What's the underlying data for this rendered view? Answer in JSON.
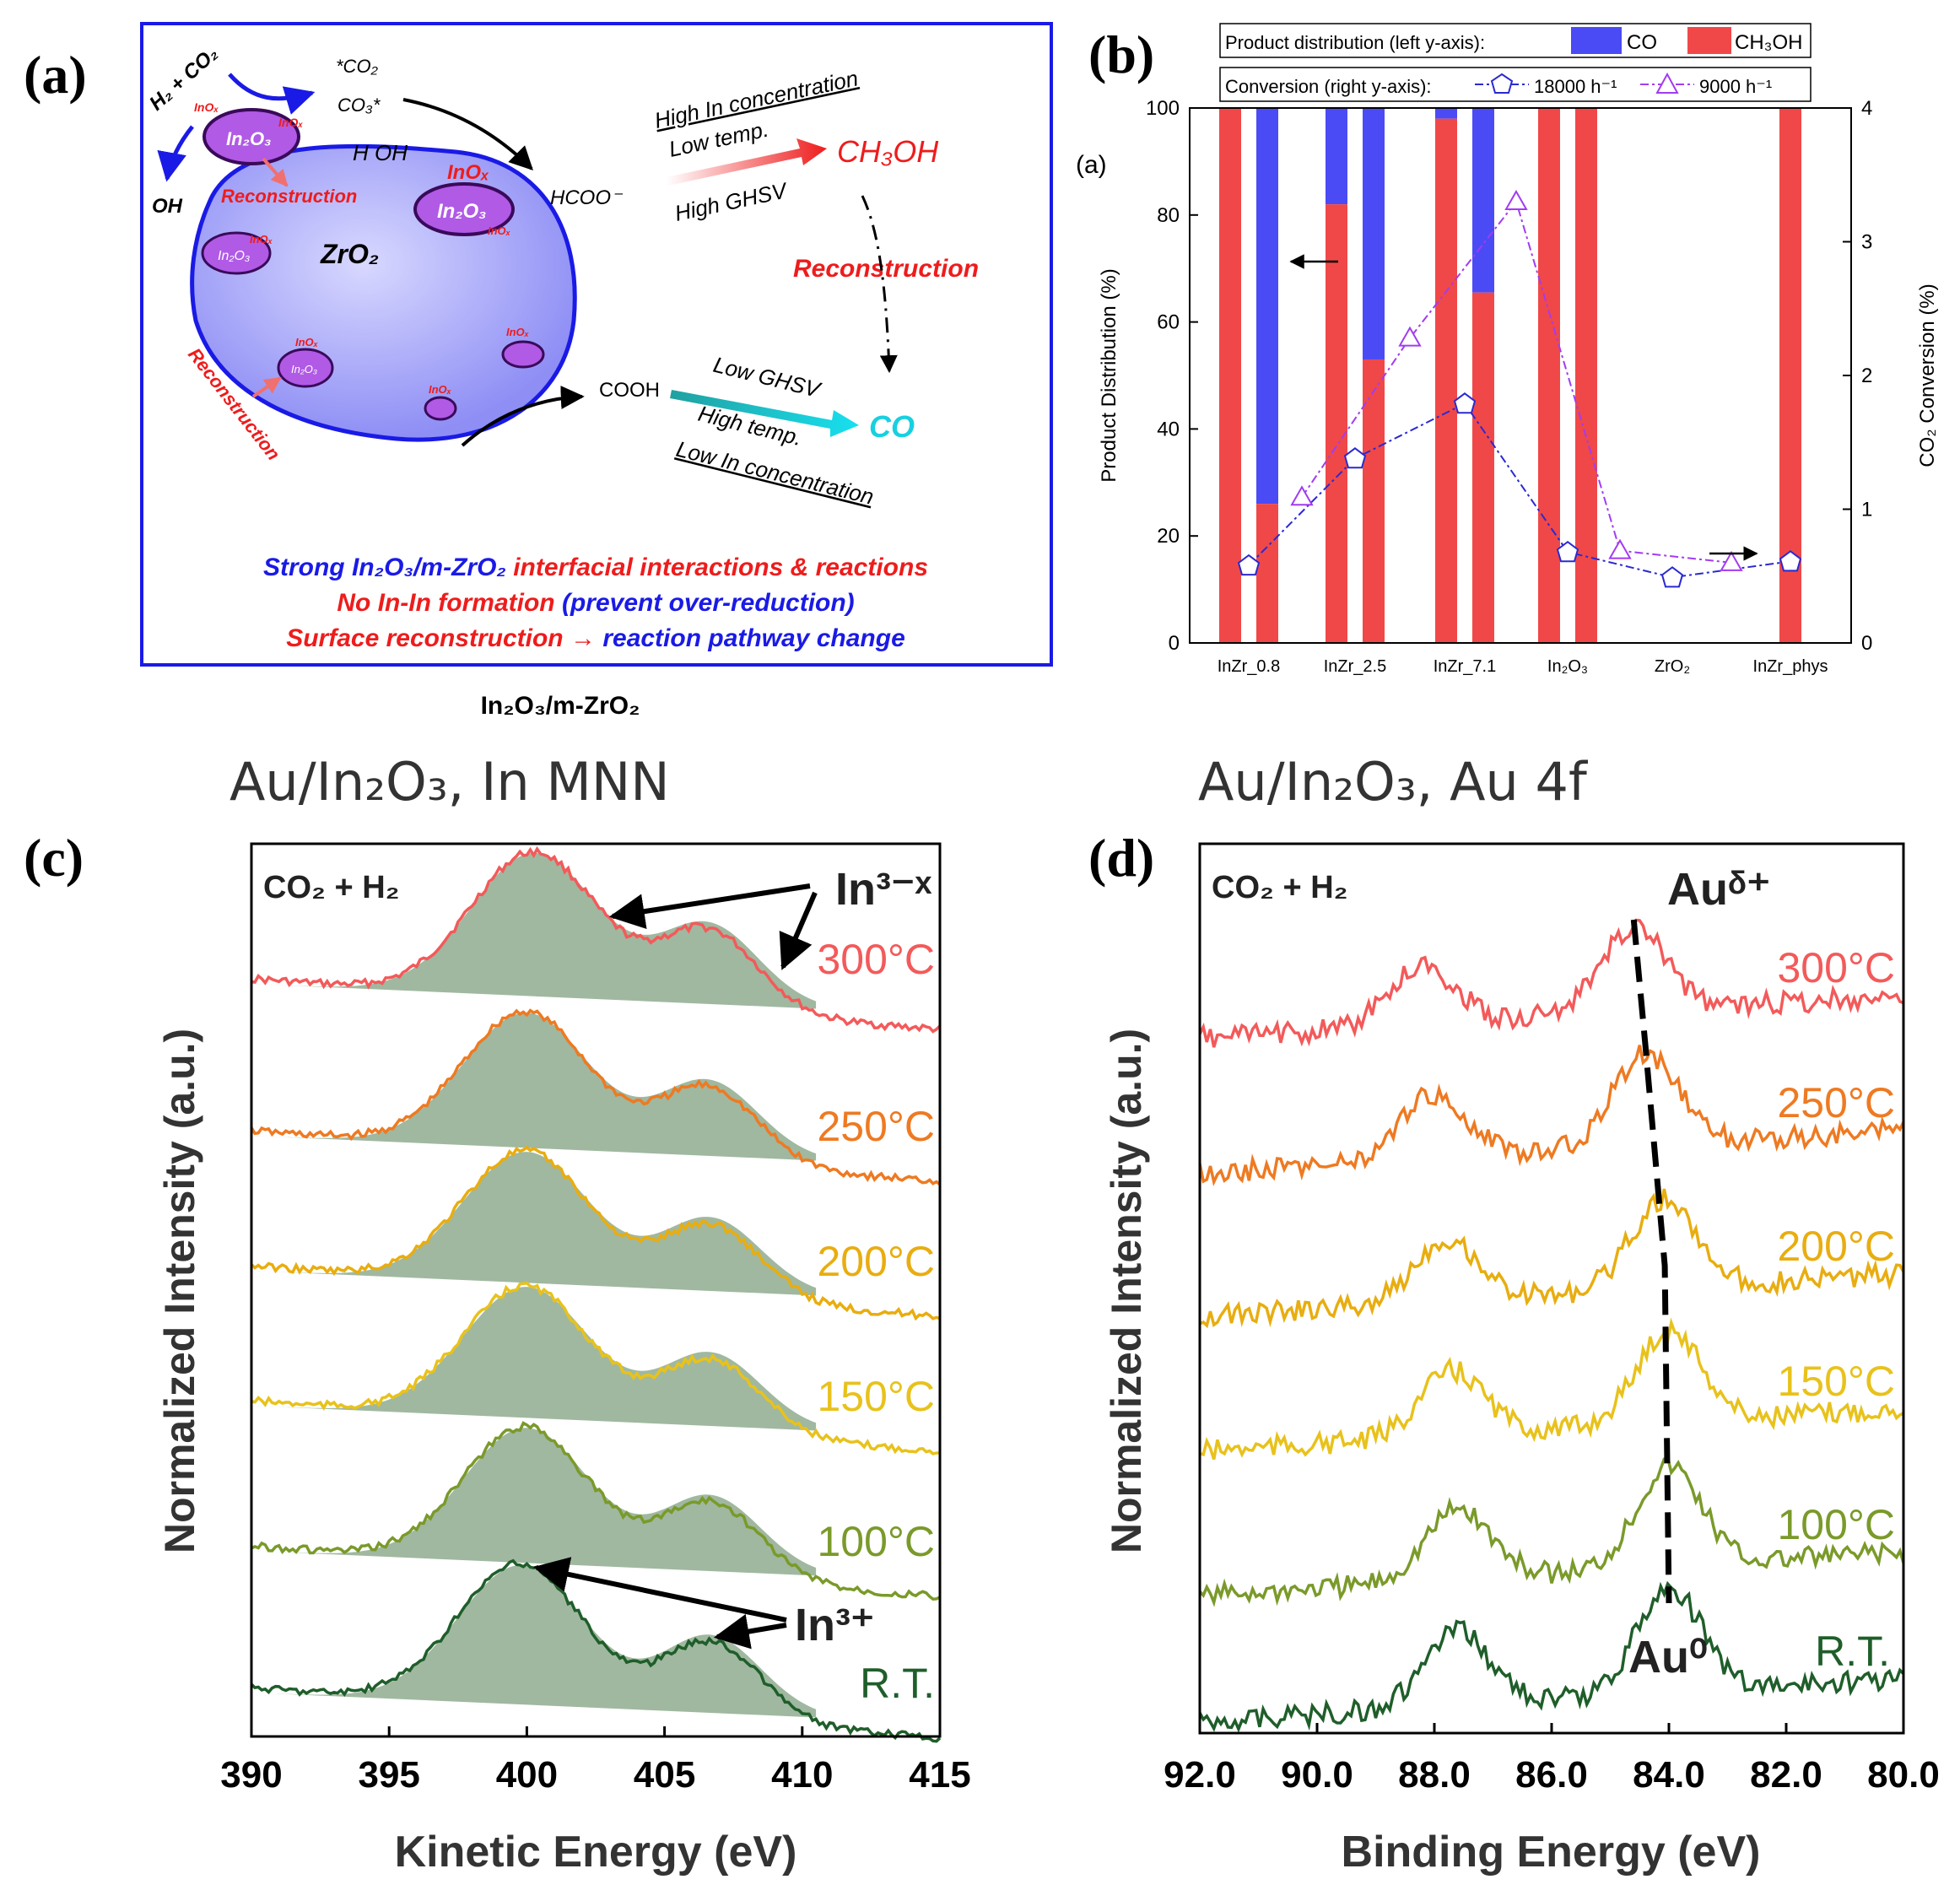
{
  "panels": {
    "a": "(a)",
    "b": "(b)",
    "c": "(c)",
    "d": "(d)"
  },
  "colors": {
    "co": "#4b4bf5",
    "ch3oh": "#f04848",
    "blue": "#1a1ae6",
    "red": "#ee1c1c",
    "cyan": "#18d0e0",
    "purple": "#a23cf0",
    "t300": "#f35a5a",
    "t250": "#ee7a22",
    "t200": "#e8ad10",
    "t150": "#e8c21c",
    "t100": "#7a9a2a",
    "trt": "#1f5e2a",
    "fill": "#80a080"
  },
  "panel_a": {
    "reactant": "H₂ + CO₂",
    "co2_ads": "*CO₂",
    "co3_ads": "CO₃*",
    "h_oh": "H  OH",
    "oh": "OH",
    "hcoo": "HCOO⁻",
    "cooh": "COOH",
    "support": "ZrO₂",
    "cluster_label": "In₂O₃",
    "inox": "InOₓ",
    "reconstruction": "Reconstruction",
    "high_in": "High In concentration",
    "low_temp": "Low temp.",
    "high_ghsv": "High GHSV",
    "product_meoh": "CH₃OH",
    "reconstruction_mid": "Reconstruction",
    "low_ghsv": "Low GHSV",
    "high_temp": "High temp.",
    "low_in": "Low In concentration",
    "product_co": "CO",
    "summary_1a": "Strong In₂O₃/m-ZrO₂",
    "summary_1b": "interfacial interactions & reactions",
    "summary_2a": "No In-In formation",
    "summary_2b": "(prevent over-reduction)",
    "summary_3a": "Surface reconstruction →",
    "summary_3b": "reaction pathway change",
    "caption": "In₂O₃/m-ZrO₂"
  },
  "chart_data": [
    {
      "type": "bar",
      "panel": "b",
      "inner_label": "(a)",
      "legend_row1_label": "Product distribution (left y-axis):",
      "legend_row2_label": "Conversion (right y-axis):",
      "categories": [
        "InZr_0.8",
        "InZr_2.5",
        "InZr_7.1",
        "In₂O₃",
        "ZrO₂",
        "InZr_phys"
      ],
      "bar_groups": [
        {
          "category": "InZr_0.8",
          "bars": [
            {
              "ch3oh": 100
            },
            {
              "ch3oh": 26
            }
          ]
        },
        {
          "category": "InZr_2.5",
          "bars": [
            {
              "ch3oh": 82
            },
            {
              "ch3oh": 53
            }
          ]
        },
        {
          "category": "InZr_7.1",
          "bars": [
            {
              "ch3oh": 98
            },
            {
              "ch3oh": 65.5
            }
          ]
        },
        {
          "category": "In₂O₃",
          "bars": [
            {
              "ch3oh": 100
            },
            {
              "ch3oh": 100
            }
          ]
        },
        {
          "category": "ZrO₂",
          "bars": []
        },
        {
          "category": "InZr_phys",
          "bars": [
            {
              "ch3oh": 100
            }
          ]
        }
      ],
      "series": [
        {
          "name": "CO",
          "kind": "stacked-bar"
        },
        {
          "name": "CH₃OH",
          "kind": "stacked-bar"
        },
        {
          "name": "18000 h⁻¹",
          "kind": "line",
          "axis": "right",
          "points": [
            [
              0,
              0.58
            ],
            [
              1,
              1.38
            ],
            [
              2,
              1.79
            ],
            [
              3,
              0.68
            ],
            [
              4,
              0.49
            ],
            [
              5,
              0.61
            ]
          ]
        },
        {
          "name": "9000 h⁻¹",
          "kind": "line",
          "axis": "right",
          "points": [
            [
              0.5,
              1.09
            ],
            [
              1.5,
              2.28
            ],
            [
              2.5,
              3.3
            ],
            [
              3.5,
              0.69
            ],
            [
              4.5,
              0.6
            ]
          ]
        }
      ],
      "ylabel": "Product Distribution (%)",
      "ylabel2": "CO₂ Conversion (%)",
      "ylim": [
        0,
        100
      ],
      "ylim2": [
        0,
        4
      ],
      "yticks": [
        0,
        20,
        40,
        60,
        80,
        100
      ],
      "yticks2": [
        0,
        1,
        2,
        3,
        4
      ]
    },
    {
      "type": "line",
      "panel": "c",
      "title": "Au/In₂O₃, In MNN",
      "condition": "CO₂ + H₂",
      "xlabel": "Kinetic Energy (eV)",
      "ylabel": "Normalized Intensity (a.u.)",
      "xlim": [
        390,
        415
      ],
      "xticks": [
        390,
        395,
        400,
        405,
        410,
        415
      ],
      "series": [
        {
          "name": "300°C",
          "peaks": [
            [
              400.3,
              1.0
            ],
            [
              406.6,
              0.55
            ]
          ]
        },
        {
          "name": "250°C",
          "peaks": [
            [
              400.0,
              1.0
            ],
            [
              406.6,
              0.55
            ]
          ]
        },
        {
          "name": "200°C",
          "peaks": [
            [
              400.0,
              1.0
            ],
            [
              406.7,
              0.55
            ]
          ]
        },
        {
          "name": "150°C",
          "peaks": [
            [
              400.0,
              1.0
            ],
            [
              406.7,
              0.55
            ]
          ]
        },
        {
          "name": "100°C",
          "peaks": [
            [
              400.0,
              1.0
            ],
            [
              406.7,
              0.55
            ]
          ]
        },
        {
          "name": "R.T.",
          "peaks": [
            [
              399.8,
              1.0
            ],
            [
              406.7,
              0.55
            ]
          ]
        }
      ],
      "annotations": [
        "In³⁻ˣ",
        "In³⁺"
      ]
    },
    {
      "type": "line",
      "panel": "d",
      "title": "Au/In₂O₃, Au 4f",
      "condition": "CO₂ + H₂",
      "xlabel": "Binding Energy (eV)",
      "ylabel": "Normalized Intensity (a.u.)",
      "xlim": [
        92.0,
        80.0
      ],
      "xticks": [
        "92.0",
        "90.0",
        "88.0",
        "86.0",
        "84.0",
        "82.0",
        "80.0"
      ],
      "series": [
        {
          "name": "300°C",
          "peaks": [
            [
              88.2,
              0.7
            ],
            [
              84.6,
              1.0
            ]
          ]
        },
        {
          "name": "250°C",
          "peaks": [
            [
              88.0,
              0.7
            ],
            [
              84.4,
              1.0
            ]
          ]
        },
        {
          "name": "200°C",
          "peaks": [
            [
              87.8,
              0.7
            ],
            [
              84.1,
              1.0
            ]
          ]
        },
        {
          "name": "150°C",
          "peaks": [
            [
              87.7,
              0.7
            ],
            [
              84.0,
              1.0
            ]
          ]
        },
        {
          "name": "100°C",
          "peaks": [
            [
              87.6,
              0.7
            ],
            [
              84.0,
              1.0
            ]
          ]
        },
        {
          "name": "R.T.",
          "peaks": [
            [
              87.6,
              0.7
            ],
            [
              84.0,
              1.0
            ]
          ]
        }
      ],
      "annotations": [
        "Auᵟ⁺",
        "Au⁰"
      ]
    }
  ]
}
